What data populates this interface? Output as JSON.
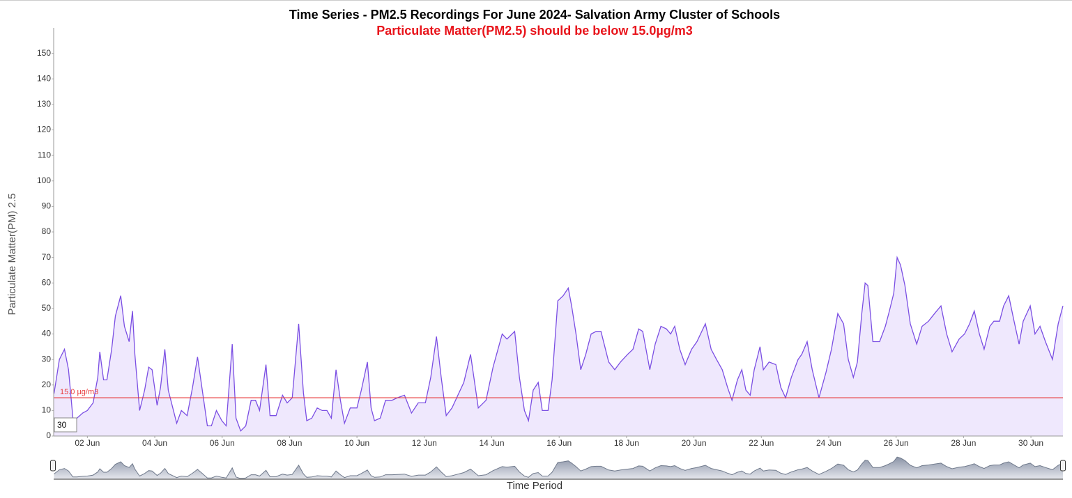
{
  "chart_data": {
    "type": "area",
    "title": "Time Series - PM2.5 Recordings For June 2024- Salvation Army Cluster of Schools",
    "subtitle": "Particulate Matter(PM2.5) should be below 15.0µg/m3",
    "y_label": "Particulate Matter(PM) 2.5",
    "x_label": "Time Period",
    "range_input": "30",
    "color": "#7b4fe3",
    "fill": "#efe8fd",
    "threshold": {
      "value": 15,
      "label": "15.0 µg/m3",
      "color": "#e8393a"
    },
    "x": [
      1.01,
      1.17,
      1.32,
      1.44,
      1.57,
      1.69,
      1.86,
      2.0,
      2.17,
      2.31,
      2.37,
      2.48,
      2.58,
      2.72,
      2.83,
      2.99,
      3.1,
      3.24,
      3.34,
      3.41,
      3.55,
      3.7,
      3.82,
      3.92,
      4.07,
      4.17,
      4.3,
      4.4,
      4.65,
      4.79,
      4.96,
      5.12,
      5.27,
      5.41,
      5.56,
      5.68,
      5.83,
      5.99,
      6.12,
      6.3,
      6.41,
      6.55,
      6.7,
      6.86,
      6.99,
      7.11,
      7.3,
      7.42,
      7.6,
      7.79,
      7.93,
      8.08,
      8.27,
      8.41,
      8.51,
      8.66,
      8.82,
      8.97,
      9.11,
      9.24,
      9.38,
      9.51,
      9.63,
      9.8,
      10.0,
      10.13,
      10.31,
      10.42,
      10.52,
      10.69,
      10.85,
      11.04,
      11.2,
      11.41,
      11.62,
      11.82,
      12.03,
      12.19,
      12.36,
      12.5,
      12.65,
      12.82,
      12.96,
      13.17,
      13.37,
      13.6,
      13.83,
      14.04,
      14.31,
      14.45,
      14.68,
      14.82,
      14.97,
      15.09,
      15.23,
      15.38,
      15.5,
      15.67,
      15.79,
      15.96,
      16.12,
      16.27,
      16.37,
      16.5,
      16.64,
      16.79,
      16.95,
      17.1,
      17.24,
      17.47,
      17.65,
      17.82,
      18.03,
      18.19,
      18.36,
      18.48,
      18.69,
      18.85,
      19.02,
      19.18,
      19.31,
      19.43,
      19.58,
      19.74,
      19.93,
      20.09,
      20.34,
      20.51,
      20.67,
      20.84,
      21.0,
      21.13,
      21.29,
      21.42,
      21.54,
      21.67,
      21.79,
      21.96,
      22.06,
      22.23,
      22.43,
      22.58,
      22.72,
      22.89,
      23.09,
      23.2,
      23.36,
      23.51,
      23.71,
      23.92,
      24.08,
      24.27,
      24.44,
      24.58,
      24.73,
      24.85,
      24.98,
      25.08,
      25.16,
      25.31,
      25.51,
      25.68,
      25.8,
      25.93,
      26.03,
      26.13,
      26.26,
      26.42,
      26.61,
      26.77,
      26.96,
      27.14,
      27.33,
      27.5,
      27.66,
      27.87,
      28.03,
      28.18,
      28.32,
      28.47,
      28.61,
      28.78,
      28.9,
      29.07,
      29.19,
      29.34,
      29.5,
      29.65,
      29.77,
      29.98,
      30.12,
      30.27,
      30.43,
      30.64,
      30.81,
      30.95
    ],
    "values": [
      16.6,
      30,
      34,
      26,
      7,
      7,
      9,
      10,
      13,
      23,
      33,
      22,
      22,
      34,
      47,
      55,
      43,
      37,
      49,
      32,
      10,
      18,
      27,
      26,
      12,
      19,
      34,
      18,
      5,
      10,
      8,
      19,
      31,
      18,
      4,
      4,
      10,
      6,
      4,
      36,
      7,
      2,
      4,
      14,
      14,
      10,
      28,
      8,
      8,
      16,
      13,
      15,
      44,
      17,
      6,
      7,
      11,
      10,
      10,
      7,
      26,
      14,
      5,
      11,
      11,
      18,
      29,
      11,
      6,
      7,
      14,
      14,
      15,
      16,
      9,
      13,
      13,
      23,
      39,
      23,
      8,
      11,
      15,
      21,
      32,
      11,
      14,
      27,
      40,
      38,
      41,
      23,
      10,
      6,
      18,
      21,
      10,
      10,
      22,
      53,
      55,
      58,
      51,
      40,
      26,
      32,
      40,
      41,
      41,
      29,
      26,
      29,
      32,
      34,
      42,
      41,
      26,
      36,
      43,
      42,
      40,
      43,
      34,
      28,
      34,
      37,
      44,
      34,
      30,
      26,
      19,
      14,
      22,
      26,
      18,
      16,
      26,
      35,
      26,
      29,
      28,
      19,
      15,
      23,
      30,
      32,
      37,
      26,
      15,
      25,
      34,
      48,
      44,
      30,
      23,
      29,
      48,
      60,
      59,
      37,
      37,
      43,
      49,
      56,
      70,
      67,
      59,
      44,
      36,
      43,
      45,
      48,
      51,
      40,
      33,
      38,
      40,
      44,
      49,
      40,
      34,
      43,
      45,
      45,
      51,
      55,
      45,
      36,
      45,
      51,
      40,
      43,
      37,
      30,
      44,
      51
    ],
    "xlim": [
      1,
      30.95
    ],
    "xticks": [
      {
        "value": 2,
        "label": "02 Jun"
      },
      {
        "value": 4,
        "label": "04 Jun"
      },
      {
        "value": 6,
        "label": "06 Jun"
      },
      {
        "value": 8,
        "label": "08 Jun"
      },
      {
        "value": 10,
        "label": "10 Jun"
      },
      {
        "value": 12,
        "label": "12 Jun"
      },
      {
        "value": 14,
        "label": "14 Jun"
      },
      {
        "value": 16,
        "label": "16 Jun"
      },
      {
        "value": 18,
        "label": "18 Jun"
      },
      {
        "value": 20,
        "label": "20 Jun"
      },
      {
        "value": 22,
        "label": "22 Jun"
      },
      {
        "value": 24,
        "label": "24 Jun"
      },
      {
        "value": 26,
        "label": "26 Jun"
      },
      {
        "value": 28,
        "label": "28 Jun"
      },
      {
        "value": 30,
        "label": "30 Jun"
      }
    ],
    "ylim": [
      0,
      160
    ],
    "yticks": [
      0,
      10,
      20,
      30,
      40,
      50,
      60,
      70,
      80,
      90,
      100,
      110,
      120,
      130,
      140,
      150
    ]
  }
}
